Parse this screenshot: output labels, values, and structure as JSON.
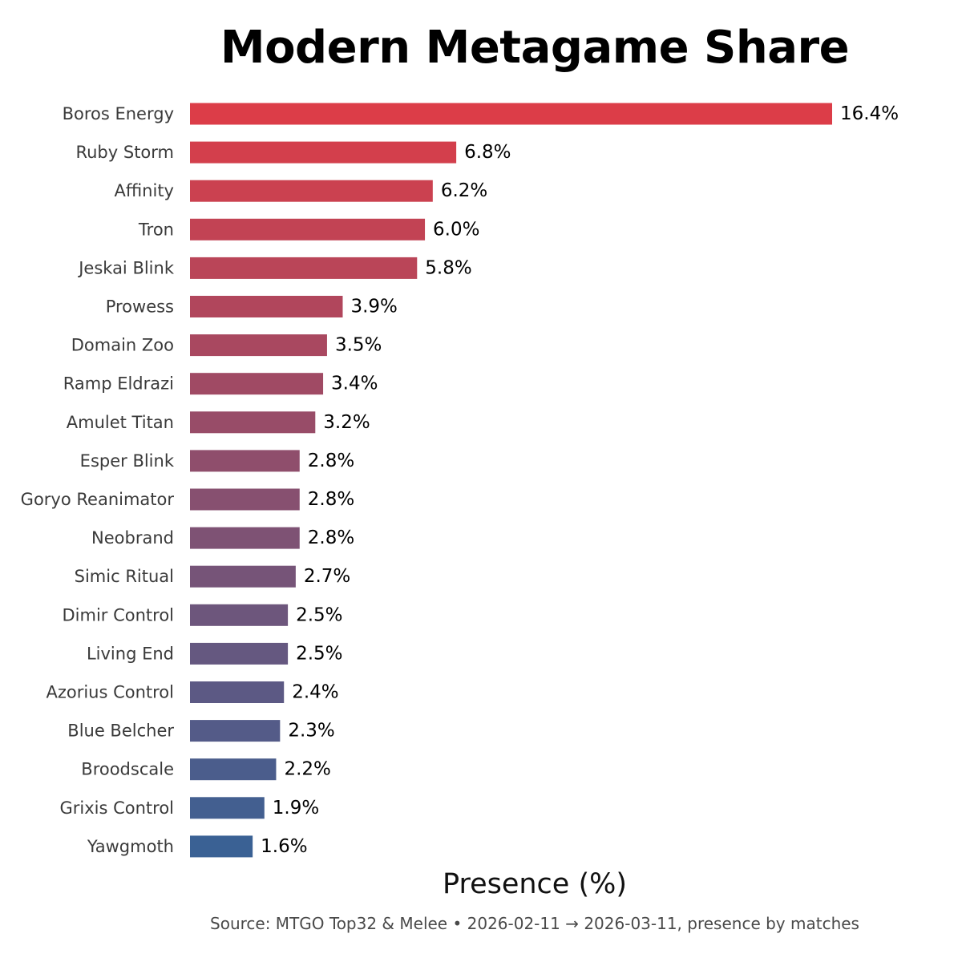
{
  "chart_data": {
    "type": "bar",
    "orientation": "horizontal",
    "title": "Modern Metagame Share",
    "xlabel": "Presence (%)",
    "ylabel": "",
    "source_note": "Source: MTGO Top32 & Melee  •  2026-02-11 → 2026-03-11, presence by matches",
    "value_suffix": "%",
    "grid": false,
    "legend": "none",
    "categories": [
      "Boros Energy",
      "Ruby Storm",
      "Affinity",
      "Tron",
      "Jeskai Blink",
      "Prowess",
      "Domain Zoo",
      "Ramp Eldrazi",
      "Amulet Titan",
      "Esper Blink",
      "Goryo Reanimator",
      "Neobrand",
      "Simic Ritual",
      "Dimir Control",
      "Living End",
      "Azorius Control",
      "Blue Belcher",
      "Broodscale",
      "Grixis Control",
      "Yawgmoth"
    ],
    "values": [
      16.4,
      6.8,
      6.2,
      6.0,
      5.8,
      3.9,
      3.5,
      3.4,
      3.2,
      2.8,
      2.8,
      2.8,
      2.7,
      2.5,
      2.5,
      2.4,
      2.3,
      2.2,
      1.9,
      1.6
    ],
    "value_labels": [
      "16.4%",
      "6.8%",
      "6.2%",
      "6.0%",
      "5.8%",
      "3.9%",
      "3.5%",
      "3.4%",
      "3.2%",
      "2.8%",
      "2.8%",
      "2.8%",
      "2.7%",
      "2.5%",
      "2.5%",
      "2.4%",
      "2.3%",
      "2.2%",
      "1.9%",
      "1.6%"
    ],
    "xlim": [
      0,
      16.4
    ],
    "colors": {
      "gradient_top": "#dc3d48",
      "gradient_bottom": "#3a6194"
    }
  }
}
